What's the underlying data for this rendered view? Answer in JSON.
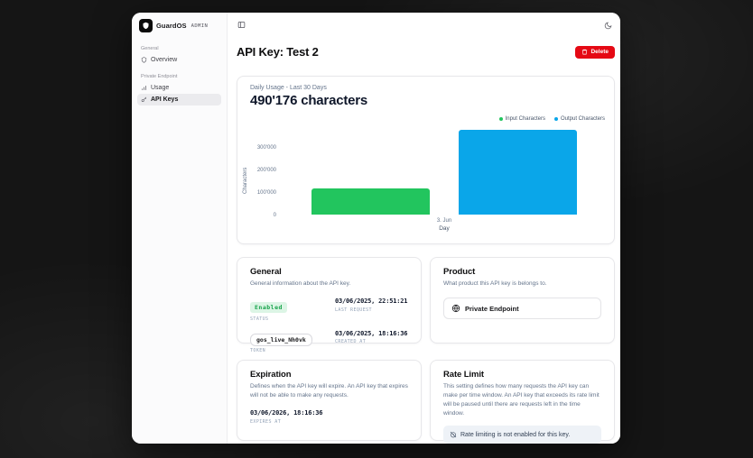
{
  "sidebar": {
    "brand": {
      "name": "GuardOS",
      "tag": "ADMIN"
    },
    "sections": [
      {
        "label": "General",
        "items": [
          {
            "label": "Overview",
            "icon": "shield-icon",
            "active": false
          }
        ]
      },
      {
        "label": "Private Endpoint",
        "items": [
          {
            "label": "Usage",
            "icon": "bar-chart-icon",
            "active": false
          },
          {
            "label": "API Keys",
            "icon": "key-icon",
            "active": true
          }
        ]
      }
    ]
  },
  "header": {
    "title": "API Key: Test 2",
    "delete_label": "Delete"
  },
  "usage_card": {
    "subtitle": "Daily Usage - Last 30 Days",
    "total": "490'176 characters"
  },
  "chart_data": {
    "type": "bar",
    "title": "Daily Usage - Last 30 Days",
    "categories": [
      "3. Jun"
    ],
    "series": [
      {
        "name": "Input Characters",
        "color": "#22c55e",
        "values": [
          115000
        ]
      },
      {
        "name": "Output Characters",
        "color": "#0aa6e9",
        "values": [
          375000
        ]
      }
    ],
    "xlabel": "Day",
    "ylabel": "Characters",
    "ylim": [
      0,
      400000
    ],
    "yticks_top_to_bottom": [
      "300'000",
      "200'000",
      "100'000",
      "0"
    ],
    "legend_position": "top-right",
    "grid": false
  },
  "cards": {
    "general": {
      "title": "General",
      "subtitle": "General information about the API key.",
      "status_value": "Enabled",
      "status_label": "STATUS",
      "last_request_value": "03/06/2025, 22:51:21",
      "last_request_label": "LAST REQUEST",
      "token_value": "gos_live_Nh0vk",
      "token_label": "TOKEN",
      "created_value": "03/06/2025, 18:16:36",
      "created_label": "CREATED AT"
    },
    "product": {
      "title": "Product",
      "subtitle": "What product this API key is belongs to.",
      "item_label": "Private Endpoint"
    },
    "expiration": {
      "title": "Expiration",
      "subtitle": "Defines when the API key will expire. An API key that expires will not be able to make any requests.",
      "expires_value": "03/06/2026, 18:16:36",
      "expires_label": "EXPIRES AT"
    },
    "rate_limit": {
      "title": "Rate Limit",
      "subtitle": "This setting defines how many requests the API key can make per time window. An API key that exceeds its rate limit will be paused until there are requests left in the time window.",
      "notice": "Rate limiting is not enabled for this key."
    }
  },
  "colors": {
    "input_bar": "#22c55e",
    "output_bar": "#0aa6e9",
    "delete_button": "#e50914",
    "badge_bg": "#dcf5e5",
    "badge_text": "#16a34a"
  },
  "icons": {
    "brand": "shield-icon",
    "sidebar_toggle": "panel-left-icon",
    "theme": "moon-icon",
    "delete": "trash-icon",
    "product_item": "globe-icon",
    "rate_notice": "timer-off-icon"
  }
}
